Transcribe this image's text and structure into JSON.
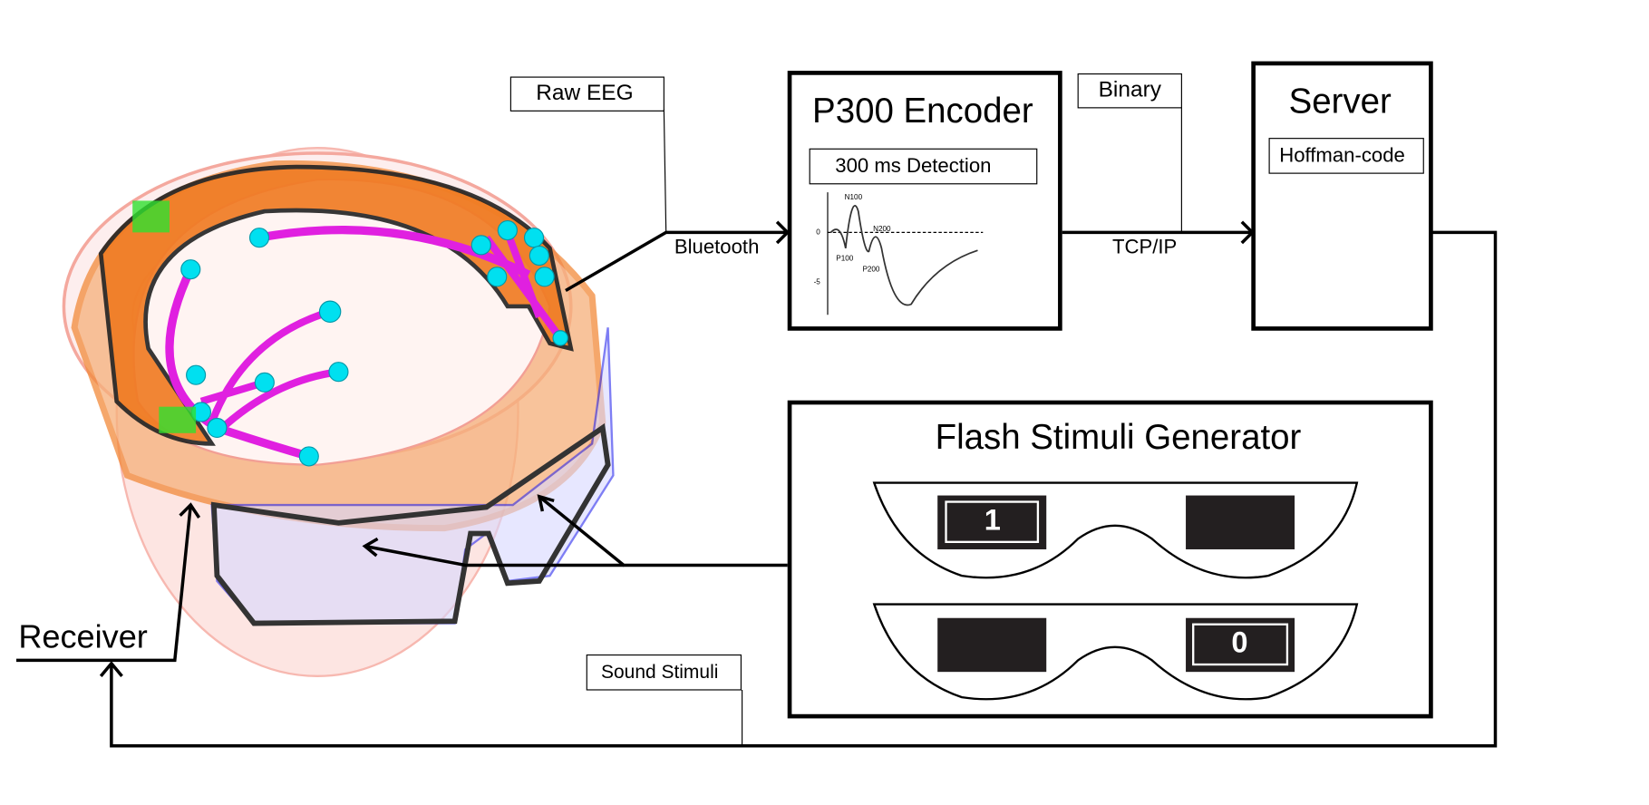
{
  "labels": {
    "raw_eeg": "Raw EEG",
    "bluetooth": "Bluetooth",
    "binary": "Binary",
    "tcp_ip": "TCP/IP",
    "receiver": "Receiver",
    "sound_stimuli": "Sound Stimuli"
  },
  "encoder": {
    "title": "P300 Encoder",
    "detection": "300 ms Detection",
    "erp": {
      "peaks": [
        "N100",
        "N200",
        "P100",
        "P200"
      ],
      "yticks": [
        "0",
        "-5"
      ]
    }
  },
  "server": {
    "title": "Server",
    "code": "Hoffman-code"
  },
  "generator": {
    "title": "Flash Stimuli Generator",
    "top_digit": "1",
    "bottom_digit": "0"
  }
}
